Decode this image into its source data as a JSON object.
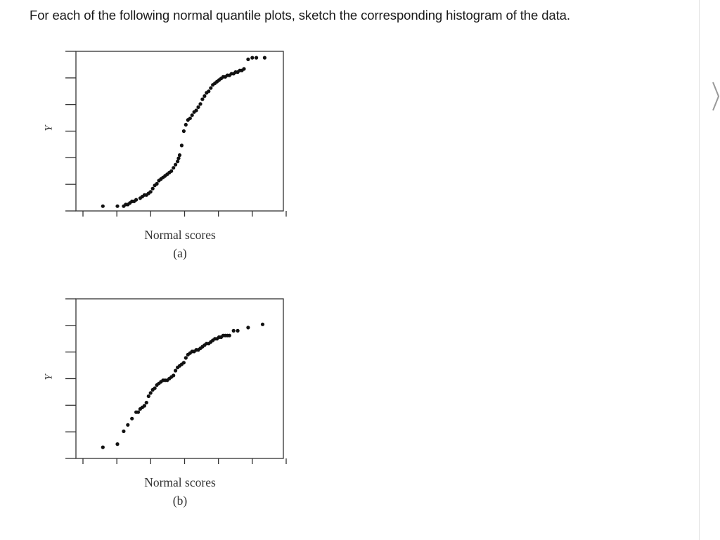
{
  "question": {
    "text": "For each of the following normal quantile plots, sketch the corresponding histogram of the data."
  },
  "nav": {
    "next_icon": "chevron-right-icon"
  },
  "chart_data": [
    {
      "type": "scatter",
      "title": "",
      "xlabel": "Normal scores",
      "ylabel": "Y",
      "caption": "(a)",
      "xlim": [
        0,
        1
      ],
      "ylim": [
        0,
        1
      ],
      "x": [
        0.13,
        0.2,
        0.23,
        0.24,
        0.25,
        0.26,
        0.27,
        0.28,
        0.29,
        0.31,
        0.32,
        0.33,
        0.34,
        0.35,
        0.36,
        0.37,
        0.38,
        0.39,
        0.4,
        0.41,
        0.42,
        0.43,
        0.44,
        0.45,
        0.46,
        0.47,
        0.48,
        0.49,
        0.495,
        0.5,
        0.51,
        0.52,
        0.53,
        0.54,
        0.55,
        0.56,
        0.57,
        0.58,
        0.59,
        0.6,
        0.61,
        0.62,
        0.63,
        0.64,
        0.65,
        0.66,
        0.67,
        0.68,
        0.69,
        0.7,
        0.71,
        0.72,
        0.73,
        0.74,
        0.75,
        0.76,
        0.77,
        0.78,
        0.79,
        0.8,
        0.81,
        0.83,
        0.85,
        0.87,
        0.91
      ],
      "y": [
        0.03,
        0.03,
        0.03,
        0.04,
        0.04,
        0.05,
        0.06,
        0.06,
        0.07,
        0.08,
        0.09,
        0.1,
        0.1,
        0.11,
        0.12,
        0.14,
        0.16,
        0.17,
        0.19,
        0.2,
        0.21,
        0.22,
        0.23,
        0.24,
        0.25,
        0.27,
        0.29,
        0.31,
        0.33,
        0.35,
        0.41,
        0.5,
        0.54,
        0.57,
        0.58,
        0.6,
        0.62,
        0.63,
        0.65,
        0.67,
        0.7,
        0.72,
        0.74,
        0.75,
        0.77,
        0.79,
        0.8,
        0.81,
        0.82,
        0.83,
        0.84,
        0.84,
        0.85,
        0.85,
        0.86,
        0.86,
        0.87,
        0.87,
        0.88,
        0.88,
        0.89,
        0.95,
        0.96,
        0.96,
        0.96
      ]
    },
    {
      "type": "scatter",
      "title": "",
      "xlabel": "Normal scores",
      "ylabel": "Y",
      "caption": "(b)",
      "xlim": [
        0,
        1
      ],
      "ylim": [
        0,
        1
      ],
      "x": [
        0.13,
        0.2,
        0.23,
        0.25,
        0.27,
        0.29,
        0.3,
        0.31,
        0.32,
        0.33,
        0.34,
        0.35,
        0.36,
        0.37,
        0.38,
        0.39,
        0.4,
        0.41,
        0.42,
        0.43,
        0.44,
        0.45,
        0.46,
        0.47,
        0.48,
        0.49,
        0.5,
        0.51,
        0.52,
        0.53,
        0.54,
        0.55,
        0.56,
        0.57,
        0.58,
        0.59,
        0.6,
        0.61,
        0.62,
        0.63,
        0.64,
        0.65,
        0.66,
        0.67,
        0.68,
        0.69,
        0.7,
        0.71,
        0.72,
        0.73,
        0.74,
        0.76,
        0.78,
        0.83,
        0.9
      ],
      "y": [
        0.07,
        0.09,
        0.17,
        0.21,
        0.25,
        0.29,
        0.29,
        0.31,
        0.32,
        0.33,
        0.35,
        0.39,
        0.41,
        0.43,
        0.44,
        0.46,
        0.47,
        0.48,
        0.49,
        0.49,
        0.49,
        0.5,
        0.51,
        0.52,
        0.55,
        0.57,
        0.58,
        0.59,
        0.6,
        0.63,
        0.65,
        0.66,
        0.67,
        0.67,
        0.68,
        0.68,
        0.69,
        0.7,
        0.71,
        0.72,
        0.72,
        0.73,
        0.74,
        0.75,
        0.75,
        0.76,
        0.76,
        0.77,
        0.77,
        0.77,
        0.77,
        0.8,
        0.8,
        0.82,
        0.84
      ]
    }
  ]
}
